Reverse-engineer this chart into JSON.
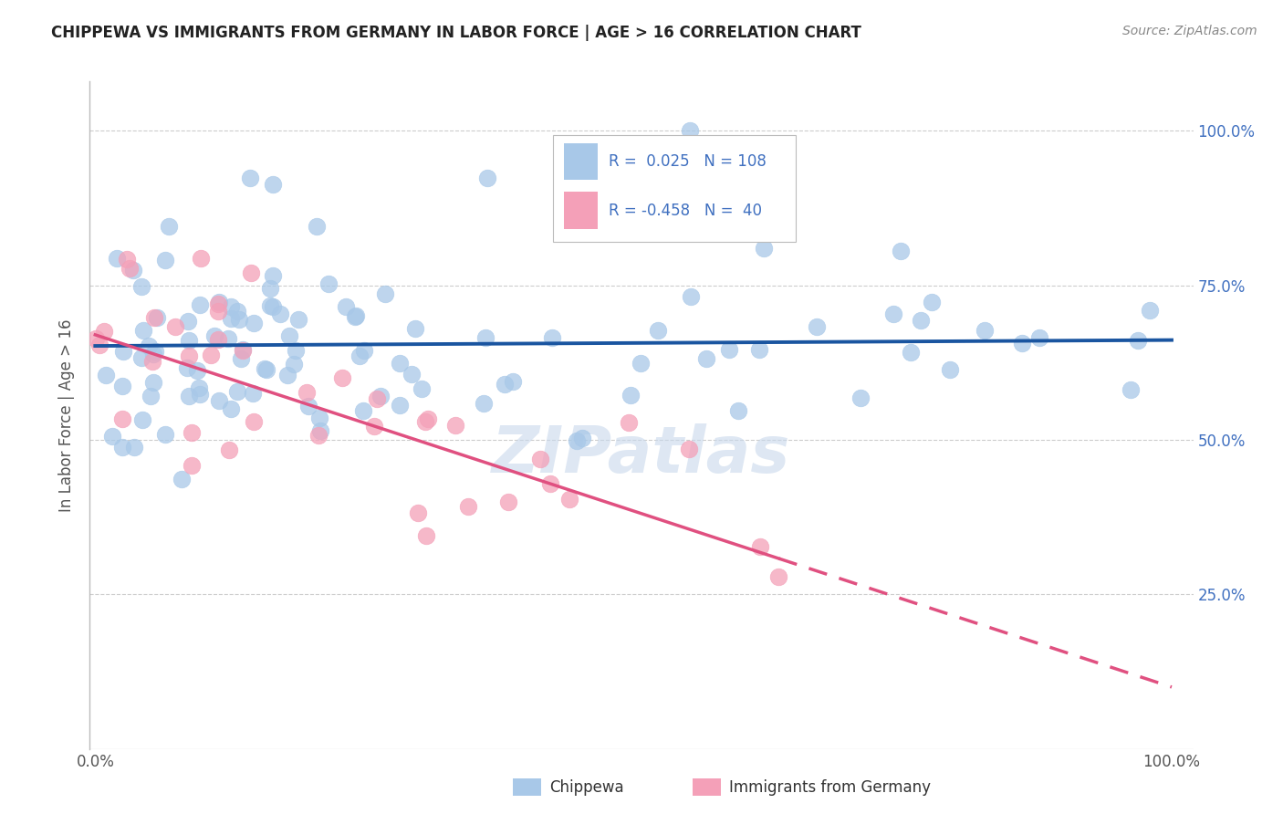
{
  "title": "CHIPPEWA VS IMMIGRANTS FROM GERMANY IN LABOR FORCE | AGE > 16 CORRELATION CHART",
  "source": "Source: ZipAtlas.com",
  "ylabel": "In Labor Force | Age > 16",
  "blue_color": "#a8c8e8",
  "pink_color": "#f4a0b8",
  "line_blue": "#1a55a0",
  "line_pink": "#e05080",
  "background_color": "#ffffff",
  "legend_blue_r": "R =",
  "legend_blue_rv": "0.025",
  "legend_blue_n": "N =",
  "legend_blue_nv": "108",
  "legend_pink_r": "R =",
  "legend_pink_rv": "-0.458",
  "legend_pink_n": "N =",
  "legend_pink_nv": "40",
  "watermark": "ZIPatlas",
  "watermark_color": "#c8d8ec",
  "label_color": "#4070c0",
  "tick_color": "#555555",
  "grid_color": "#cccccc"
}
